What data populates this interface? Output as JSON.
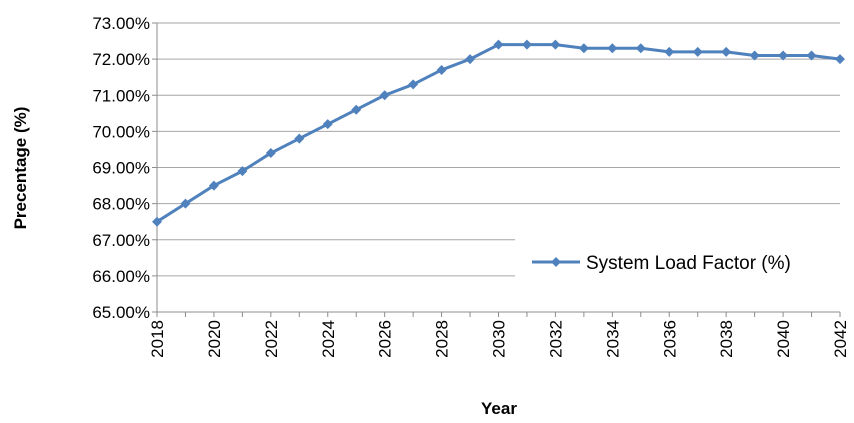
{
  "chart_data": {
    "type": "line",
    "title": "",
    "xlabel": "Year",
    "ylabel": "Precentage (%)",
    "x": [
      2018,
      2019,
      2020,
      2021,
      2022,
      2023,
      2024,
      2025,
      2026,
      2027,
      2028,
      2029,
      2030,
      2031,
      2032,
      2033,
      2034,
      2035,
      2036,
      2037,
      2038,
      2039,
      2040,
      2041,
      2042
    ],
    "x_tick_labels": [
      "2018",
      "2020",
      "2022",
      "2024",
      "2026",
      "2028",
      "2030",
      "2032",
      "2034",
      "2036",
      "2038",
      "2040",
      "2042"
    ],
    "y_tick_labels": [
      "65.00%",
      "66.00%",
      "67.00%",
      "68.00%",
      "69.00%",
      "70.00%",
      "71.00%",
      "72.00%",
      "73.00%"
    ],
    "ylim": [
      65,
      73
    ],
    "y_unit": "%",
    "grid": "horizontal",
    "legend_position": "bottom-right",
    "series": [
      {
        "name": "System Load Factor (%)",
        "color": "#4F81BD",
        "marker": "diamond",
        "values": [
          67.5,
          68.0,
          68.5,
          68.9,
          69.4,
          69.8,
          70.2,
          70.6,
          71.0,
          71.3,
          71.7,
          72.0,
          72.4,
          72.4,
          72.4,
          72.3,
          72.3,
          72.3,
          72.2,
          72.2,
          72.2,
          72.1,
          72.1,
          72.1,
          72.0
        ]
      }
    ]
  }
}
